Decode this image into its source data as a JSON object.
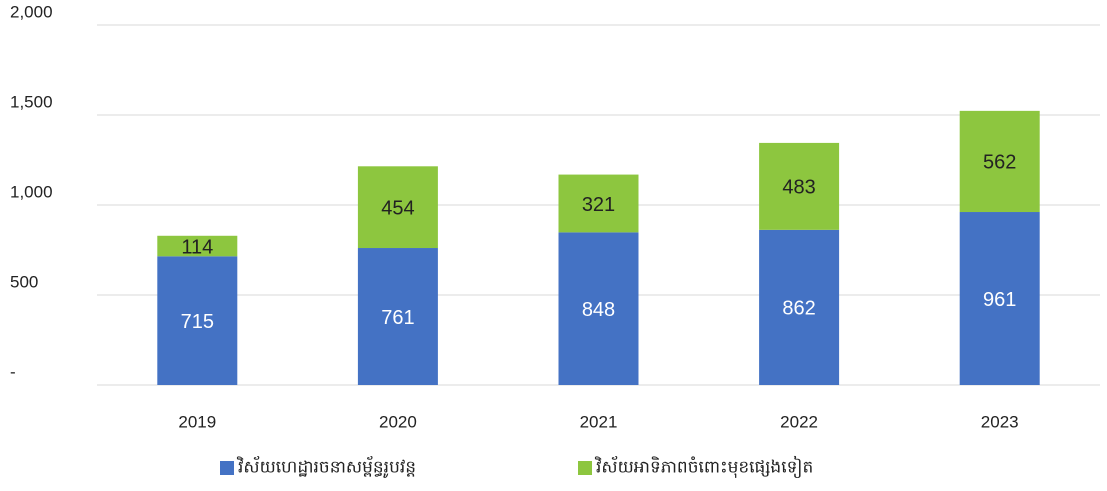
{
  "chart_data": {
    "type": "stacked_bar",
    "categories": [
      "2019",
      "2020",
      "2021",
      "2022",
      "2023"
    ],
    "series": [
      {
        "name": "វិស័យហេដ្ឋារចនាសម្ព័ន្ធរូបវន្ត",
        "color": "#4472c4",
        "values": [
          715,
          761,
          848,
          862,
          961
        ]
      },
      {
        "name": "វិស័យអាទិភាពចំពោះមុខផ្សេងទៀត",
        "color": "#8dc63f",
        "values": [
          114,
          454,
          321,
          483,
          562
        ]
      }
    ],
    "ylim": [
      0,
      2000
    ],
    "yticks": [
      {
        "value": 0,
        "label": "-"
      },
      500,
      {
        "value": 1000,
        "label": "1,000"
      },
      {
        "value": 1500,
        "label": "1,500"
      },
      {
        "value": 2000,
        "label": "2,000"
      }
    ],
    "grid": true,
    "legend": "bottom"
  }
}
